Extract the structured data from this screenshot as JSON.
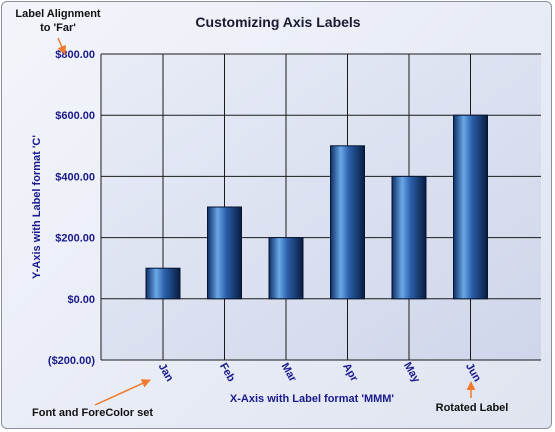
{
  "chart_data": {
    "type": "bar",
    "title": "Customizing Axis Labels",
    "xlabel": "X-Axis with Label format 'MMM'",
    "ylabel": "Y-Axis with Label format 'C'",
    "categories": [
      "Jan",
      "Feb",
      "Mar",
      "Apr",
      "May",
      "Jun"
    ],
    "values": [
      100,
      300,
      200,
      500,
      400,
      600
    ],
    "ylim": [
      -200,
      800
    ],
    "yticks": [
      -200,
      0,
      200,
      400,
      600,
      800
    ],
    "ytick_labels": [
      "($200.00)",
      "$0.00",
      "$200.00",
      "$400.00",
      "$600.00",
      "$800.00"
    ],
    "grid": true,
    "bar_color": "#1f4e8c",
    "label_color": "#1a1a8c",
    "annotations": [
      {
        "text": "Label Alignment",
        "target": "y-axis-top-label"
      },
      {
        "text": "to 'Far'",
        "target": "y-axis-top-label"
      },
      {
        "text": "Font and ForeColor set",
        "target": "x-axis-first-label"
      },
      {
        "text": "Rotated Label",
        "target": "x-axis-last-label"
      }
    ]
  }
}
